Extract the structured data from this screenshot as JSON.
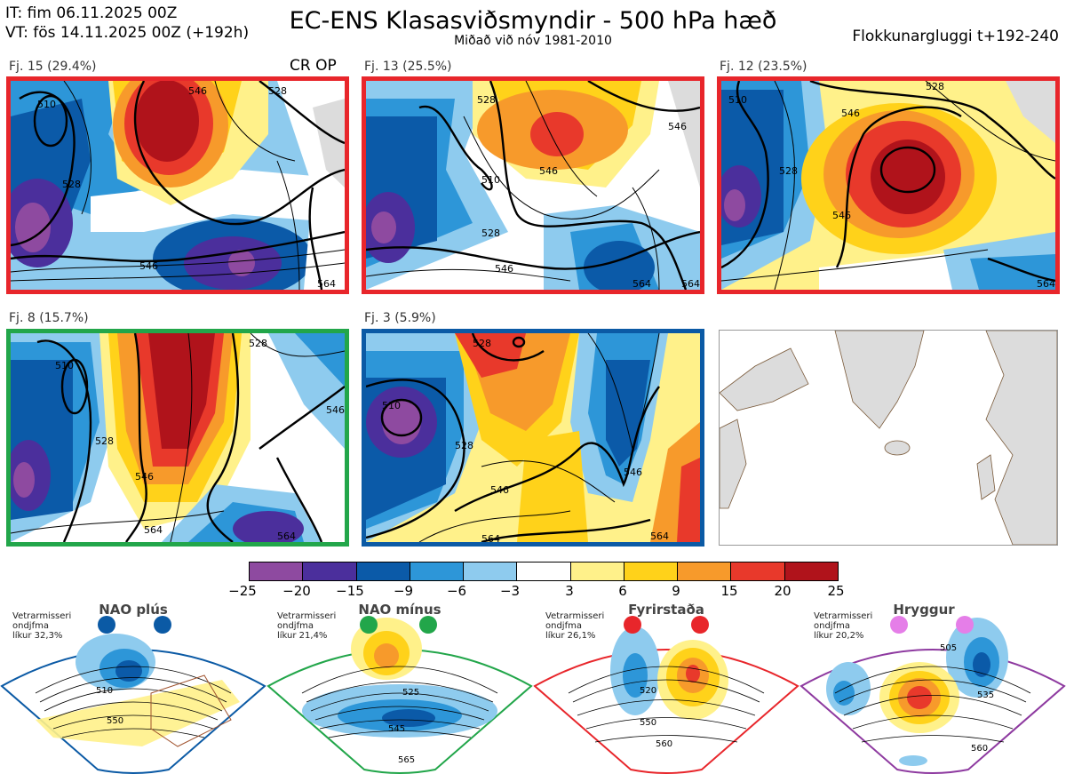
{
  "header": {
    "init_time": "IT: fim 06.11.2025 00Z",
    "valid_time": "VT: fös 14.11.2025 00Z  (+192h)",
    "title": "EC-ENS Klasasviðsmyndir - 500 hPa hæð",
    "subtitle": "Miðað við nóv 1981-2010",
    "window": "Flokkunargluggi t+192-240"
  },
  "clusters": [
    {
      "label": "Fj. 15 (29.4%)",
      "extra": "CR OP",
      "regime": "Fyrirstaða",
      "border": "#e8262b",
      "contours": [
        "510",
        "528",
        "546",
        "528",
        "546",
        "564"
      ]
    },
    {
      "label": "Fj. 13 (25.5%)",
      "regime": "Fyrirstaða",
      "border": "#e8262b",
      "contours": [
        "528",
        "546",
        "510",
        "546",
        "528",
        "546",
        "564",
        "564"
      ]
    },
    {
      "label": "Fj. 12 (23.5%)",
      "regime": "Fyrirstaða",
      "border": "#e8262b",
      "contours": [
        "510",
        "528",
        "546",
        "528",
        "546",
        "564"
      ]
    },
    {
      "label": "Fj. 8 (15.7%)",
      "regime": "NAO mínus",
      "border": "#22a64a",
      "contours": [
        "510",
        "528",
        "546",
        "528",
        "546",
        "564",
        "564"
      ]
    },
    {
      "label": "Fj. 3 (5.9%)",
      "regime": "NAO plús",
      "border": "#0b5aa5",
      "contours": [
        "510",
        "528",
        "528",
        "546",
        "546",
        "564",
        "564"
      ]
    }
  ],
  "colorbar": {
    "ticks": [
      "−25",
      "−20",
      "−15",
      "−9",
      "−6",
      "−3",
      "3",
      "6",
      "9",
      "15",
      "20",
      "25"
    ],
    "colors": [
      "#8e4aa0",
      "#4b2f9c",
      "#0b5aa8",
      "#2d96d8",
      "#8ecbee",
      "#ffffff",
      "#fff18a",
      "#ffd21a",
      "#f79a2b",
      "#e8392b",
      "#b0131b"
    ]
  },
  "regimes": [
    {
      "name": "NAO plús",
      "note": [
        "Vetrarmisseri",
        "ondjfma",
        "líkur 32,3%"
      ],
      "color": "#0b5aa5",
      "labels": [
        "510",
        "550"
      ]
    },
    {
      "name": "NAO mínus",
      "note": [
        "Vetrarmisseri",
        "ondjfma",
        "líkur 21,4%"
      ],
      "color": "#22a64a",
      "labels": [
        "525",
        "545",
        "565"
      ]
    },
    {
      "name": "Fyrirstaða",
      "note": [
        "Vetrarmisseri",
        "ondjfma",
        "líkur 26,1%"
      ],
      "color": "#e8262b",
      "labels": [
        "520",
        "550",
        "560"
      ]
    },
    {
      "name": "Hryggur",
      "note": [
        "Vetrarmisseri",
        "ondjfma",
        "líkur 20,2%"
      ],
      "color": "#8e3aa0",
      "labels": [
        "505",
        "535",
        "560"
      ]
    }
  ]
}
